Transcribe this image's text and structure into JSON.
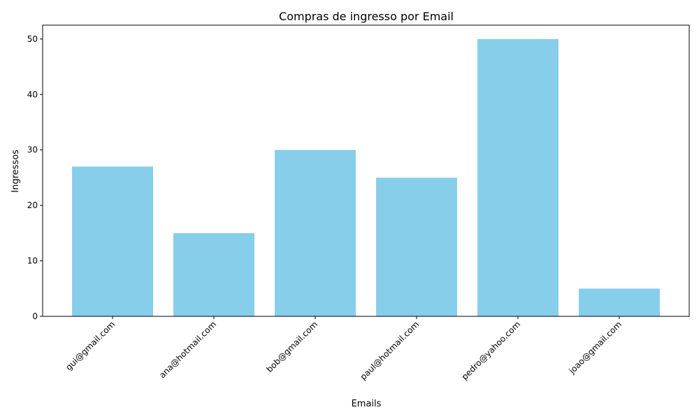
{
  "chart_data": {
    "type": "bar",
    "title": "Compras de ingresso por Email",
    "xlabel": "Emails",
    "ylabel": "Ingressos",
    "categories": [
      "gui@gmail.com",
      "ana@hotmail.com",
      "bob@gmail.com",
      "paul@hotmail.com",
      "pedro@yahoo.com",
      "joao@gmail.com"
    ],
    "values": [
      27,
      15,
      30,
      25,
      50,
      5
    ],
    "ylim": [
      0,
      52.5
    ],
    "yticks": [
      0,
      10,
      20,
      30,
      40,
      50
    ],
    "bar_color": "#87ceeb",
    "grid": false,
    "legend": "none"
  }
}
